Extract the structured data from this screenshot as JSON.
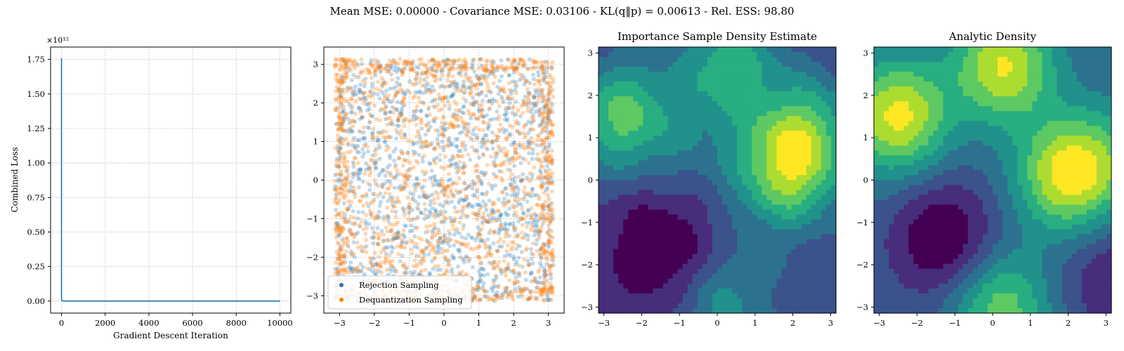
{
  "suptitle": "Mean MSE: 0.00000 - Covariance MSE: 0.03106 - KL(q‖p) = 0.00613 - Rel. ESS: 98.80",
  "colors": {
    "loss_line": "#1f77b4",
    "rejection": "#1f77b4",
    "dequantization": "#ff7f0e",
    "viridis": [
      "#440154",
      "#472d7b",
      "#3b528b",
      "#2c728e",
      "#21918c",
      "#28ae80",
      "#5ec962",
      "#addc30",
      "#fde725"
    ]
  },
  "chart_data": [
    {
      "type": "line",
      "title": "",
      "xlabel": "Gradient Descent Iteration",
      "ylabel": "Combined Loss",
      "offset_text": "×10¹²",
      "xlim": [
        -500,
        10500
      ],
      "ylim": [
        -0.0875,
        1.84
      ],
      "xticks": [
        0,
        2000,
        4000,
        6000,
        8000,
        10000
      ],
      "xtick_labels": [
        "0",
        "2000",
        "4000",
        "6000",
        "8000",
        "10000"
      ],
      "yticks": [
        0,
        0.25,
        0.5,
        0.75,
        1.0,
        1.25,
        1.5,
        1.75
      ],
      "ytick_labels": [
        "0.00",
        "0.25",
        "0.50",
        "0.75",
        "1.00",
        "1.25",
        "1.50",
        "1.75"
      ],
      "grid": true,
      "series": [
        {
          "x": [
            0,
            0,
            50,
            10000
          ],
          "y": [
            1.76,
            0.01,
            0.0,
            0.0
          ]
        }
      ]
    },
    {
      "type": "scatter",
      "title": "",
      "xlabel": "",
      "ylabel": "",
      "xlim": [
        -3.45,
        3.45
      ],
      "ylim": [
        -3.45,
        3.45
      ],
      "xticks": [
        -3,
        -2,
        -1,
        0,
        1,
        2,
        3
      ],
      "xtick_labels": [
        "−3",
        "−2",
        "−1",
        "0",
        "1",
        "2",
        "3"
      ],
      "yticks": [
        -3,
        -2,
        -1,
        0,
        1,
        2,
        3
      ],
      "ytick_labels": [
        "−3",
        "−2",
        "−1",
        "0",
        "1",
        "2",
        "3"
      ],
      "grid": true,
      "legend_position": "lower-left",
      "series": [
        {
          "name": "Rejection Sampling",
          "range": [
            -3.14,
            3.14
          ],
          "marker_count": 1400
        },
        {
          "name": "Dequantization Sampling",
          "range": [
            -3.14,
            3.14
          ],
          "marker_count": 1900
        }
      ]
    },
    {
      "type": "heatmap",
      "title": "Importance Sample Density Estimate",
      "xlabel": "",
      "ylabel": "",
      "xlim": [
        -3.1416,
        3.1416
      ],
      "ylim": [
        -3.1416,
        3.1416
      ],
      "xticks": [
        -3,
        -2,
        -1,
        0,
        1,
        2,
        3
      ],
      "xtick_labels": [
        "−3",
        "−2",
        "−1",
        "0",
        "1",
        "2",
        "3"
      ],
      "yticks": [
        -3,
        -2,
        -1,
        0,
        1,
        2,
        3
      ],
      "ytick_labels": [
        "−3",
        "−2",
        "−1",
        "0",
        "1",
        "2",
        "3"
      ],
      "grid": false,
      "levels": 9,
      "peaks": [
        {
          "x": -2.5,
          "y": 1.5,
          "amp": 1.0
        },
        {
          "x": 0.3,
          "y": 2.7,
          "amp": 0.82
        },
        {
          "x": 2.0,
          "y": 0.6,
          "amp": 1.05
        },
        {
          "x": 1.7,
          "y": -0.2,
          "amp": 0.45
        },
        {
          "x": 2.6,
          "y": 1.4,
          "amp": 0.4
        },
        {
          "x": 0.2,
          "y": -3.0,
          "amp": 0.55
        },
        {
          "x": -0.6,
          "y": 0.7,
          "amp": 0.25
        }
      ],
      "troughs": [
        {
          "x": -1.5,
          "y": -1.6,
          "amp": 0.55
        }
      ],
      "noise": 0.06
    },
    {
      "type": "heatmap",
      "title": "Analytic Density",
      "xlabel": "",
      "ylabel": "",
      "xlim": [
        -3.1416,
        3.1416
      ],
      "ylim": [
        -3.1416,
        3.1416
      ],
      "xticks": [
        -3,
        -2,
        -1,
        0,
        1,
        2,
        3
      ],
      "xtick_labels": [
        "−3",
        "−2",
        "−1",
        "0",
        "1",
        "2",
        "3"
      ],
      "yticks": [
        -3,
        -2,
        -1,
        0,
        1,
        2,
        3
      ],
      "ytick_labels": [
        "−3",
        "−2",
        "−1",
        "0",
        "1",
        "2",
        "3"
      ],
      "grid": false,
      "levels": 9,
      "peaks": [
        {
          "x": -2.5,
          "y": 1.5,
          "amp": 1.0
        },
        {
          "x": 0.3,
          "y": 2.7,
          "amp": 0.95
        },
        {
          "x": 2.0,
          "y": 0.1,
          "amp": 1.0
        },
        {
          "x": 0.2,
          "y": -3.0,
          "amp": 0.7
        },
        {
          "x": 3.2,
          "y": 0.6,
          "amp": 0.3
        }
      ],
      "troughs": [
        {
          "x": -1.3,
          "y": -1.4,
          "amp": 0.6
        },
        {
          "x": 3.1,
          "y": -2.3,
          "amp": 0.35
        }
      ],
      "noise": 0.0
    }
  ]
}
